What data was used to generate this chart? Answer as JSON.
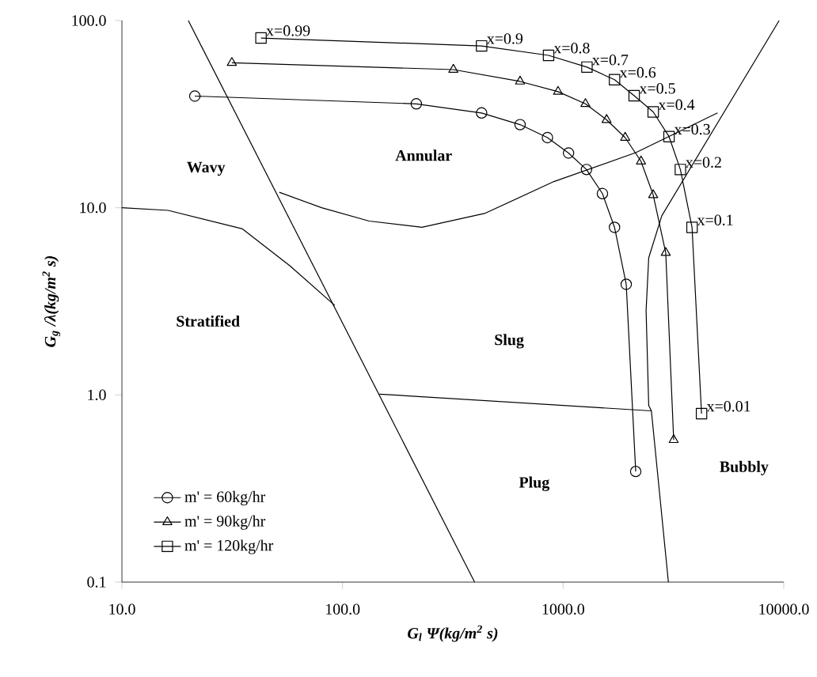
{
  "chart_data": {
    "type": "line",
    "xlabel": "G$_{l}$ Ψ(kg/m$^{2}$ s)",
    "ylabel": "G$_{g}$ /λ(kg/m$^{2}$ s)",
    "log": "xy",
    "legend": "bottom left",
    "line_style": "solid",
    "xlim": [
      10,
      10000
    ],
    "ylim": [
      0.1,
      100
    ],
    "xticks": [
      {
        "value": 10,
        "label": "10.0"
      },
      {
        "value": 100,
        "label": "100.0"
      },
      {
        "value": 1000,
        "label": "1000.0"
      },
      {
        "value": 10000,
        "label": "10000.0"
      }
    ],
    "yticks": [
      0.1,
      {
        "value": 1,
        "label": "1.0"
      },
      {
        "value": 10,
        "label": "10.0"
      },
      {
        "value": 100,
        "label": "100.0"
      }
    ],
    "series": [
      {
        "name": "m' = 60kg/hr",
        "color": "#000000",
        "marker": "circle",
        "x": [
          21.4,
          216,
          427,
          638,
          849,
          1058,
          1276,
          1507,
          1710,
          1932,
          2133
        ],
        "values": [
          39.5,
          35.9,
          32.1,
          27.8,
          23.7,
          19.6,
          16.0,
          11.9,
          7.86,
          3.9,
          0.39
        ]
      },
      {
        "name": "m' = 90kg/hr",
        "color": "#000000",
        "marker": "triangle",
        "x": [
          31.5,
          318,
          638,
          948,
          1262,
          1574,
          1911,
          2254,
          2560,
          2918,
          3170
        ],
        "values": [
          59.5,
          54.7,
          47.3,
          41.7,
          35.9,
          29.5,
          23.7,
          17.7,
          11.7,
          5.75,
          0.575
        ]
      },
      {
        "name": "m' = 120kg/hr",
        "color": "#000000",
        "marker": "square",
        "x": [
          42.7,
          427,
          859,
          1282,
          1710,
          2099,
          2560,
          3020,
          3400,
          3840,
          4240
        ],
        "values": [
          80.7,
          73.2,
          65.2,
          56.4,
          48.3,
          39.7,
          32.5,
          24.0,
          16.0,
          7.86,
          0.795
        ]
      },
      {
        "color": "#000000",
        "marker": "none",
        "x": [
          20,
          397
        ],
        "values": [
          100,
          0.1
        ]
      },
      {
        "color": "#000000",
        "marker": "none",
        "x": [
          10,
          16.2,
          35.2,
          57.7,
          92.2
        ],
        "values": [
          10,
          9.68,
          7.71,
          4.9,
          3.01
        ]
      },
      {
        "color": "#000000",
        "marker": "none",
        "x": [
          51.7,
          80.4,
          132,
          229,
          444,
          908,
          2133,
          5010
        ],
        "values": [
          12.1,
          10.0,
          8.49,
          7.86,
          9.35,
          13.8,
          19.7,
          32.1
        ]
      },
      {
        "color": "#000000",
        "marker": "none",
        "x": [
          9530,
          2800,
          2443,
          2377,
          2443,
          2512,
          3000
        ],
        "values": [
          100,
          9.06,
          5.4,
          2.82,
          0.877,
          0.822,
          0.1
        ]
      },
      {
        "color": "#000000",
        "marker": "none",
        "x": [
          147,
          2512
        ],
        "values": [
          1.01,
          0.822
        ]
      }
    ],
    "annotations": [
      "Wavy",
      "Annular",
      "Stratified",
      "Slug",
      "Plug",
      "Bubbly",
      {
        "text": "x=0.99",
        "x": 42.7,
        "y": 80.7
      },
      {
        "text": "x=0.9",
        "x": 427,
        "y": 73.2
      },
      {
        "text": "x=0.8",
        "x": 859,
        "y": 65.2
      },
      {
        "text": "x=0.7",
        "x": 1282,
        "y": 56.4
      },
      {
        "text": "x=0.6",
        "x": 1710,
        "y": 48.3
      },
      {
        "text": "x=0.5",
        "x": 2099,
        "y": 39.7
      },
      {
        "text": "x=0.4",
        "x": 2560,
        "y": 32.5
      },
      {
        "text": "x=0.3",
        "x": 3020,
        "y": 24.0
      },
      {
        "text": "x=0.2",
        "x": 3400,
        "y": 16.0
      },
      {
        "text": "x=0.1",
        "x": 3840,
        "y": 7.86
      },
      {
        "text": "x=0.01",
        "x": 4240,
        "y": 0.795
      }
    ]
  }
}
